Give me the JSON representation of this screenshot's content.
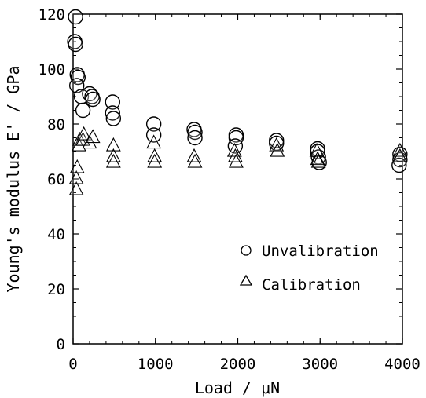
{
  "chart_data": {
    "type": "scatter",
    "xlabel": "Load / μN",
    "ylabel": "Young's modulus E' / GPa",
    "xlim": [
      0,
      4000
    ],
    "ylim": [
      0,
      120
    ],
    "xticks": [
      0,
      1000,
      2000,
      3000,
      4000
    ],
    "yticks": [
      0,
      20,
      40,
      60,
      80,
      100,
      120
    ],
    "x_tick_labels": [
      "0",
      "1000",
      "2000",
      "3000",
      "4000"
    ],
    "y_tick_labels": [
      "0",
      "20",
      "40",
      "60",
      "80",
      "100",
      "120"
    ],
    "grid": false,
    "legend_position": "lower-right",
    "series": [
      {
        "name": "Unvalibration",
        "marker": "circle",
        "points": [
          [
            30,
            119
          ],
          [
            20,
            110
          ],
          [
            30,
            109
          ],
          [
            50,
            98
          ],
          [
            60,
            97
          ],
          [
            45,
            94
          ],
          [
            100,
            90
          ],
          [
            120,
            85
          ],
          [
            200,
            91
          ],
          [
            230,
            90
          ],
          [
            240,
            89
          ],
          [
            480,
            88
          ],
          [
            480,
            84
          ],
          [
            490,
            82
          ],
          [
            980,
            80
          ],
          [
            980,
            76
          ],
          [
            1470,
            78
          ],
          [
            1480,
            77
          ],
          [
            1480,
            75
          ],
          [
            1980,
            76
          ],
          [
            1980,
            75
          ],
          [
            1970,
            72
          ],
          [
            2470,
            74
          ],
          [
            2470,
            73
          ],
          [
            2970,
            71
          ],
          [
            2970,
            70
          ],
          [
            2980,
            68
          ],
          [
            2990,
            66
          ],
          [
            3970,
            69
          ],
          [
            3970,
            67
          ],
          [
            3960,
            65
          ]
        ]
      },
      {
        "name": "Calibration",
        "marker": "triangle",
        "points": [
          [
            40,
            56
          ],
          [
            40,
            60
          ],
          [
            50,
            64
          ],
          [
            70,
            72
          ],
          [
            80,
            74
          ],
          [
            120,
            74
          ],
          [
            130,
            76
          ],
          [
            200,
            73
          ],
          [
            240,
            75
          ],
          [
            490,
            72
          ],
          [
            490,
            68
          ],
          [
            490,
            66
          ],
          [
            980,
            73
          ],
          [
            990,
            68
          ],
          [
            990,
            66
          ],
          [
            1470,
            68
          ],
          [
            1480,
            66
          ],
          [
            1960,
            70
          ],
          [
            1970,
            68
          ],
          [
            1980,
            66
          ],
          [
            2470,
            72
          ],
          [
            2480,
            70
          ],
          [
            2960,
            70
          ],
          [
            2970,
            67
          ],
          [
            2980,
            66
          ],
          [
            3970,
            70
          ],
          [
            3970,
            68
          ]
        ]
      }
    ]
  }
}
